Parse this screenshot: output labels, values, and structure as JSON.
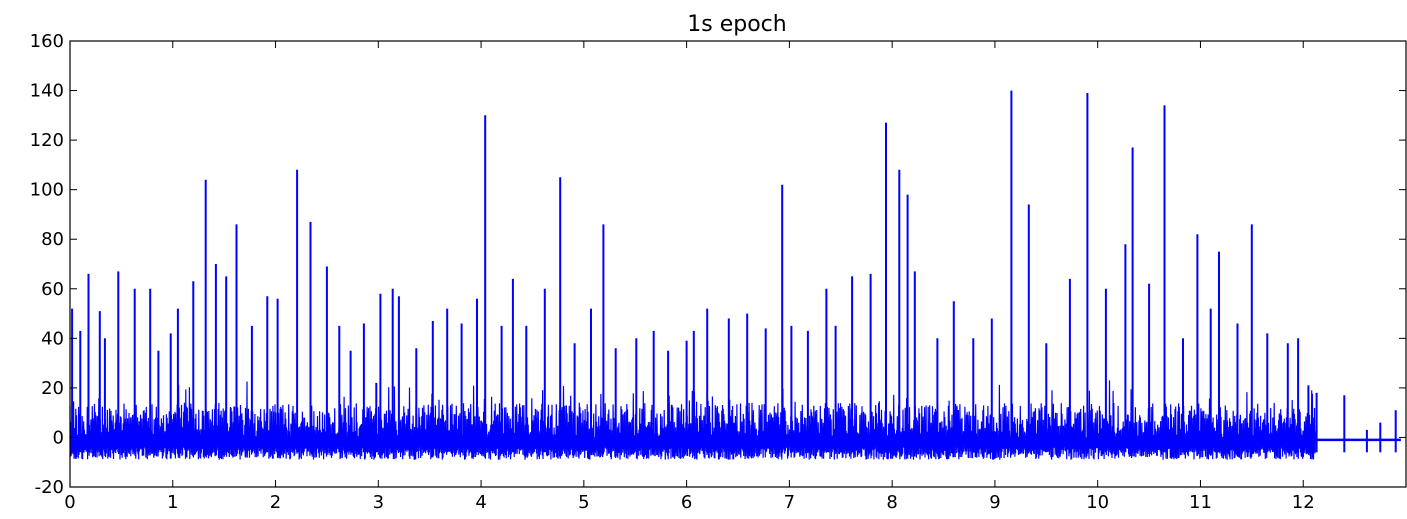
{
  "chart_data": {
    "type": "line",
    "title": "1s epoch",
    "xlabel": "",
    "ylabel": "",
    "xlim": [
      0,
      13
    ],
    "ylim": [
      -20,
      160
    ],
    "x_ticks": [
      "0",
      "1",
      "2",
      "3",
      "4",
      "5",
      "6",
      "7",
      "8",
      "9",
      "10",
      "11",
      "12"
    ],
    "y_ticks": [
      "-20",
      "0",
      "20",
      "40",
      "60",
      "80",
      "100",
      "120",
      "140",
      "160"
    ],
    "grid": false,
    "legend": "none",
    "series": [
      {
        "color": "#0000ff",
        "x": [
          0.02,
          0.1,
          0.18,
          0.29,
          0.34,
          0.47,
          0.63,
          0.78,
          0.86,
          0.98,
          1.05,
          1.2,
          1.32,
          1.42,
          1.52,
          1.62,
          1.77,
          1.92,
          2.02,
          2.21,
          2.34,
          2.5,
          2.62,
          2.73,
          2.86,
          2.98,
          3.02,
          3.14,
          3.2,
          3.37,
          3.53,
          3.67,
          3.81,
          3.96,
          4.04,
          4.2,
          4.31,
          4.44,
          4.62,
          4.77,
          4.91,
          5.07,
          5.19,
          5.31,
          5.51,
          5.68,
          5.82,
          6.0,
          6.07,
          6.2,
          6.41,
          6.59,
          6.77,
          6.93,
          7.02,
          7.18,
          7.36,
          7.45,
          7.61,
          7.79,
          7.94,
          8.07,
          8.15,
          8.22,
          8.44,
          8.6,
          8.79,
          8.97,
          9.16,
          9.33,
          9.5,
          9.73,
          9.9,
          10.08,
          10.27,
          10.34,
          10.5,
          10.65,
          10.83,
          10.97,
          11.1,
          11.18,
          11.36,
          11.5,
          11.65,
          11.85,
          11.95,
          12.05,
          12.13,
          12.2,
          12.33,
          12.4,
          12.45,
          12.5,
          12.62,
          12.7,
          12.75,
          12.82,
          12.9,
          12.95
        ],
        "y": [
          52,
          43,
          66,
          51,
          40,
          67,
          60,
          60,
          35,
          42,
          52,
          63,
          104,
          70,
          65,
          86,
          45,
          57,
          56,
          108,
          87,
          69,
          45,
          35,
          46,
          22,
          58,
          60,
          57,
          36,
          47,
          52,
          46,
          56,
          130,
          45,
          64,
          45,
          60,
          105,
          38,
          52,
          86,
          36,
          40,
          43,
          35,
          39,
          43,
          52,
          48,
          50,
          44,
          102,
          45,
          43,
          60,
          45,
          65,
          66,
          127,
          108,
          98,
          67,
          40,
          55,
          40,
          48,
          140,
          94,
          38,
          64,
          139,
          60,
          78,
          117,
          62,
          134,
          40,
          82,
          52,
          75,
          46,
          86,
          42,
          38,
          40,
          21,
          18,
          -1,
          -1,
          17,
          -1,
          -1,
          3,
          -1,
          6,
          -1,
          11,
          -1
        ]
      }
    ]
  }
}
